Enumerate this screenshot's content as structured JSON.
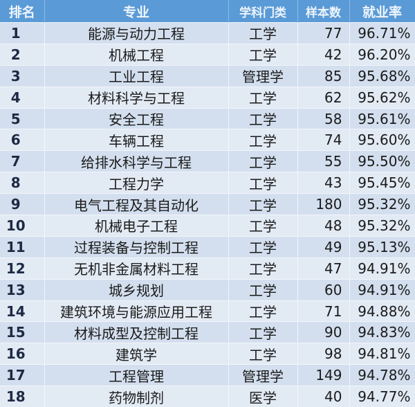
{
  "headers": {
    "rank": "排名",
    "major": "专业",
    "category": "学科门类",
    "samples": "样本数",
    "rate": "就业率"
  },
  "colors": {
    "header_bg": "#5a9ad6",
    "row_bg": "#d3dfee",
    "row_alt_bg": "#e2eaf4"
  },
  "rows": [
    {
      "rank": "1",
      "major": "能源与动力工程",
      "category": "工学",
      "samples": "77",
      "rate": "96.71%"
    },
    {
      "rank": "2",
      "major": "机械工程",
      "category": "工学",
      "samples": "42",
      "rate": "96.20%"
    },
    {
      "rank": "3",
      "major": "工业工程",
      "category": "管理学",
      "samples": "85",
      "rate": "95.68%"
    },
    {
      "rank": "4",
      "major": "材料科学与工程",
      "category": "工学",
      "samples": "62",
      "rate": "95.62%"
    },
    {
      "rank": "5",
      "major": "安全工程",
      "category": "工学",
      "samples": "58",
      "rate": "95.61%"
    },
    {
      "rank": "6",
      "major": "车辆工程",
      "category": "工学",
      "samples": "74",
      "rate": "95.60%"
    },
    {
      "rank": "7",
      "major": "给排水科学与工程",
      "category": "工学",
      "samples": "55",
      "rate": "95.50%"
    },
    {
      "rank": "8",
      "major": "工程力学",
      "category": "工学",
      "samples": "43",
      "rate": "95.45%"
    },
    {
      "rank": "9",
      "major": "电气工程及其自动化",
      "category": "工学",
      "samples": "180",
      "rate": "95.32%"
    },
    {
      "rank": "10",
      "major": "机械电子工程",
      "category": "工学",
      "samples": "48",
      "rate": "95.32%"
    },
    {
      "rank": "11",
      "major": "过程装备与控制工程",
      "category": "工学",
      "samples": "49",
      "rate": "95.13%"
    },
    {
      "rank": "12",
      "major": "无机非金属材料工程",
      "category": "工学",
      "samples": "47",
      "rate": "94.91%"
    },
    {
      "rank": "13",
      "major": "城乡规划",
      "category": "工学",
      "samples": "60",
      "rate": "94.91%"
    },
    {
      "rank": "14",
      "major": "建筑环境与能源应用工程",
      "category": "工学",
      "samples": "71",
      "rate": "94.88%"
    },
    {
      "rank": "15",
      "major": "材料成型及控制工程",
      "category": "工学",
      "samples": "90",
      "rate": "94.83%"
    },
    {
      "rank": "16",
      "major": "建筑学",
      "category": "工学",
      "samples": "98",
      "rate": "94.81%"
    },
    {
      "rank": "17",
      "major": "工程管理",
      "category": "管理学",
      "samples": "149",
      "rate": "94.78%"
    },
    {
      "rank": "18",
      "major": "药物制剂",
      "category": "医学",
      "samples": "40",
      "rate": "94.77%"
    }
  ]
}
